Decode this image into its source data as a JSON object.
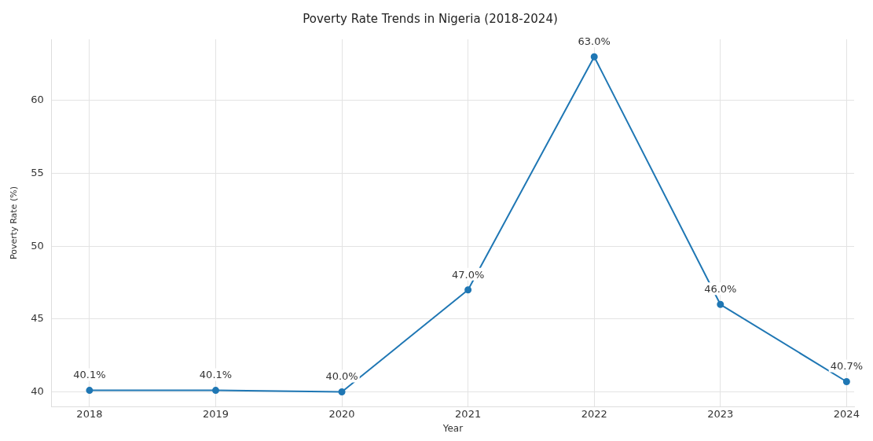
{
  "chart_data": {
    "type": "line",
    "title": "Poverty Rate Trends in Nigeria (2018-2024)",
    "xlabel": "Year",
    "ylabel": "Poverty Rate (%)",
    "x": [
      2018,
      2019,
      2020,
      2021,
      2022,
      2023,
      2024
    ],
    "series": [
      {
        "color": "#1f77b4",
        "values": [
          40.1,
          40.1,
          40.0,
          47.0,
          63.0,
          46.0,
          40.7
        ],
        "value_labels": [
          "40.1%",
          "40.1%",
          "40.0%",
          "47.0%",
          "63.0%",
          "46.0%",
          "40.7%"
        ]
      }
    ],
    "xlim": [
      2017.7,
      2024.06
    ],
    "xticks": [
      2018,
      2019,
      2020,
      2021,
      2022,
      2023,
      2024
    ],
    "ylim": [
      39,
      64.2
    ],
    "yticks": [
      40,
      45,
      50,
      55,
      60
    ],
    "grid": true,
    "marker": "circle",
    "line_style": "solid"
  }
}
